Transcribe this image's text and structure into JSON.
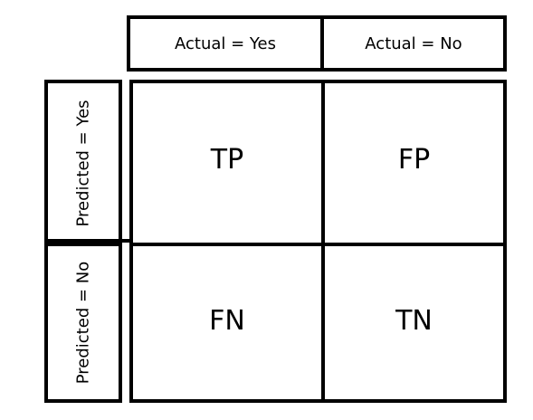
{
  "header": {
    "actual_yes": "Actual = Yes",
    "actual_no": "Actual = No"
  },
  "side": {
    "predicted_yes": "Predicted = Yes",
    "predicted_no": "Predicted = No"
  },
  "cells": {
    "tp": "TP",
    "fp": "FP",
    "fn": "FN",
    "tn": "TN"
  }
}
